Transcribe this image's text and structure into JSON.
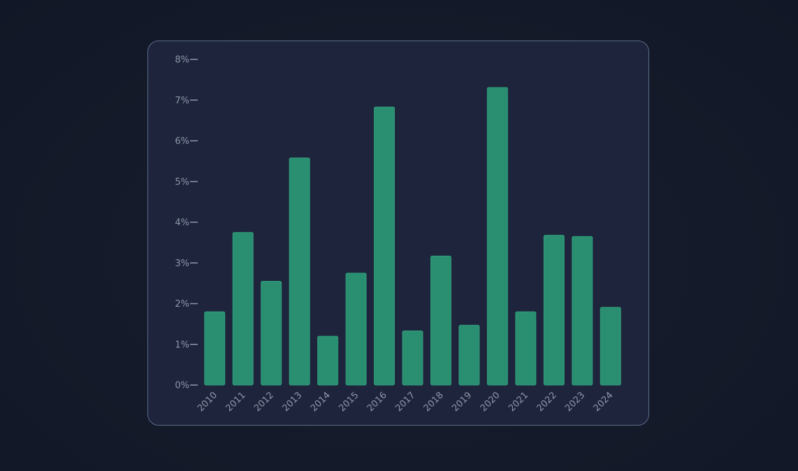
{
  "chart_data": {
    "type": "bar",
    "categories": [
      "2010",
      "2011",
      "2012",
      "2013",
      "2014",
      "2015",
      "2016",
      "2017",
      "2018",
      "2019",
      "2020",
      "2021",
      "2022",
      "2023",
      "2024"
    ],
    "values": [
      1.8,
      3.75,
      2.55,
      5.58,
      1.2,
      2.75,
      6.83,
      1.33,
      3.17,
      1.47,
      7.31,
      1.8,
      3.68,
      3.65,
      1.91
    ],
    "y_ticks": [
      "0%",
      "1%",
      "2%",
      "3%",
      "4%",
      "5%",
      "6%",
      "7%",
      "8%"
    ],
    "ylim": [
      0,
      8
    ],
    "title": "",
    "xlabel": "",
    "ylabel": "",
    "grid": false,
    "legend": false,
    "bar_color": "#2a8f71"
  }
}
